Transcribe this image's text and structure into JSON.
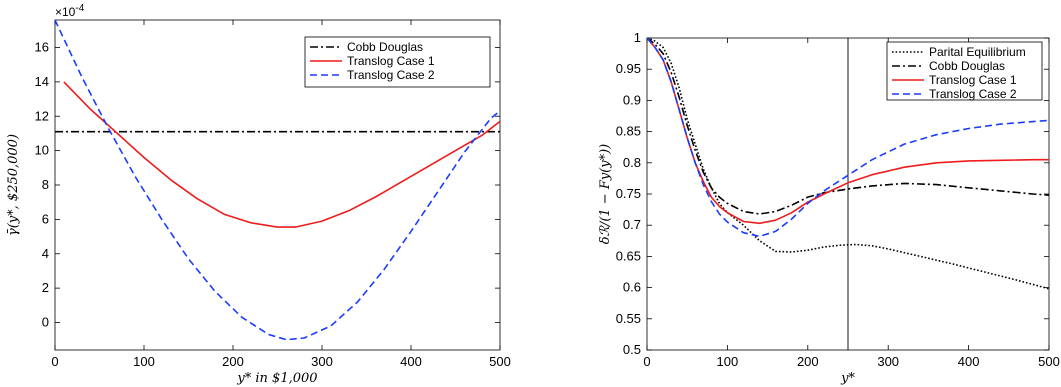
{
  "chart_data": [
    {
      "type": "line",
      "ylabel": "γ̄(y*, $250,000)",
      "xlabel": "y* in $1,000",
      "xlim": [
        0,
        500
      ],
      "ylim": [
        -1.6,
        17.6
      ],
      "y_exponent_label": "×10",
      "y_exponent_power": "-4",
      "xticks": [
        0,
        100,
        200,
        300,
        400,
        500
      ],
      "yticks": [
        0,
        2,
        4,
        6,
        8,
        10,
        12,
        14,
        16
      ],
      "legend_position": "top-right",
      "series": [
        {
          "name": "Cobb Douglas",
          "color": "#000000",
          "dash": "dashdot",
          "x": [
            0,
            500
          ],
          "y": [
            11.1,
            11.1
          ]
        },
        {
          "name": "Translog Case 1",
          "color": "#ee1c1c",
          "dash": "solid",
          "x": [
            10,
            40,
            70,
            100,
            130,
            160,
            190,
            220,
            250,
            270,
            300,
            330,
            360,
            390,
            420,
            450,
            480,
            500
          ],
          "y": [
            14.0,
            12.4,
            11.0,
            9.6,
            8.3,
            7.2,
            6.3,
            5.8,
            5.55,
            5.55,
            5.9,
            6.5,
            7.3,
            8.2,
            9.1,
            10.0,
            10.9,
            11.7
          ]
        },
        {
          "name": "Translog Case 2",
          "color": "#1a3cff",
          "dash": "dashed",
          "x": [
            0,
            30,
            60,
            90,
            120,
            150,
            180,
            210,
            240,
            260,
            280,
            310,
            340,
            370,
            400,
            430,
            460,
            490,
            500
          ],
          "y": [
            17.6,
            14.3,
            11.3,
            8.5,
            6.0,
            3.7,
            1.8,
            0.3,
            -0.7,
            -1.0,
            -0.9,
            -0.2,
            1.2,
            3.1,
            5.3,
            7.6,
            9.9,
            11.9,
            12.3
          ]
        }
      ]
    },
    {
      "type": "line",
      "ylabel": "δℛ/(1 − Fy(y*))",
      "xlabel": "y*",
      "xlim": [
        0,
        500
      ],
      "ylim": [
        0.5,
        1.0
      ],
      "xticks": [
        0,
        100,
        200,
        300,
        400,
        500
      ],
      "yticks": [
        0.5,
        0.55,
        0.6,
        0.65,
        0.7,
        0.75,
        0.8,
        0.85,
        0.9,
        0.95,
        1
      ],
      "vline_x": 250,
      "legend_position": "top-right",
      "series": [
        {
          "name": "Parital Equilibrium",
          "color": "#000000",
          "dash": "dotted",
          "x": [
            0,
            10,
            20,
            30,
            40,
            50,
            60,
            70,
            80,
            90,
            100,
            120,
            140,
            160,
            180,
            200,
            220,
            240,
            260,
            280,
            300,
            340,
            380,
            420,
            460,
            500
          ],
          "y": [
            1.0,
            0.995,
            0.985,
            0.96,
            0.92,
            0.87,
            0.83,
            0.79,
            0.76,
            0.735,
            0.72,
            0.7,
            0.675,
            0.658,
            0.657,
            0.66,
            0.665,
            0.668,
            0.669,
            0.667,
            0.662,
            0.65,
            0.638,
            0.625,
            0.612,
            0.598
          ]
        },
        {
          "name": "Cobb Douglas",
          "color": "#000000",
          "dash": "dashdot",
          "x": [
            0,
            10,
            20,
            30,
            40,
            50,
            60,
            70,
            80,
            90,
            100,
            120,
            140,
            160,
            180,
            200,
            220,
            250,
            280,
            320,
            360,
            400,
            440,
            480,
            500
          ],
          "y": [
            1.0,
            0.99,
            0.975,
            0.945,
            0.905,
            0.86,
            0.82,
            0.785,
            0.76,
            0.745,
            0.735,
            0.722,
            0.718,
            0.722,
            0.732,
            0.745,
            0.752,
            0.758,
            0.763,
            0.767,
            0.765,
            0.76,
            0.755,
            0.75,
            0.748
          ]
        },
        {
          "name": "Translog Case 1",
          "color": "#ee1c1c",
          "dash": "solid",
          "x": [
            0,
            10,
            20,
            30,
            40,
            50,
            60,
            70,
            80,
            90,
            100,
            120,
            140,
            160,
            180,
            200,
            220,
            250,
            280,
            320,
            360,
            400,
            440,
            480,
            500
          ],
          "y": [
            1.0,
            0.985,
            0.965,
            0.93,
            0.885,
            0.84,
            0.8,
            0.77,
            0.745,
            0.73,
            0.72,
            0.706,
            0.703,
            0.708,
            0.72,
            0.737,
            0.75,
            0.768,
            0.781,
            0.793,
            0.8,
            0.803,
            0.804,
            0.805,
            0.805
          ]
        },
        {
          "name": "Translog Case 2",
          "color": "#1a3cff",
          "dash": "dashed",
          "x": [
            0,
            10,
            20,
            30,
            40,
            50,
            60,
            70,
            80,
            90,
            100,
            120,
            140,
            160,
            180,
            200,
            220,
            250,
            280,
            320,
            360,
            400,
            440,
            480,
            500
          ],
          "y": [
            1.0,
            0.985,
            0.965,
            0.93,
            0.885,
            0.84,
            0.8,
            0.765,
            0.738,
            0.718,
            0.705,
            0.688,
            0.682,
            0.69,
            0.71,
            0.735,
            0.755,
            0.78,
            0.805,
            0.83,
            0.845,
            0.855,
            0.862,
            0.866,
            0.868
          ]
        }
      ]
    }
  ]
}
